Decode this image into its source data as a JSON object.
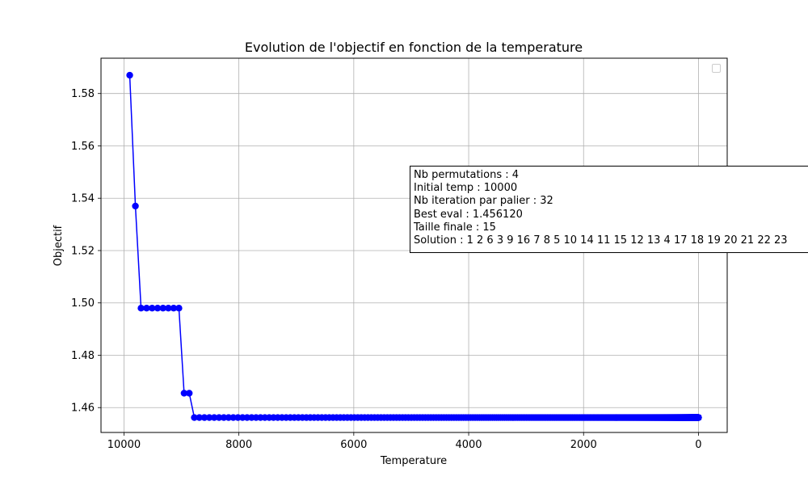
{
  "chart_data": {
    "type": "line",
    "title": "Evolution de l'objectif en fonction de la temperature",
    "xlabel": "Temperature",
    "ylabel": "Objectif",
    "xlim": [
      10400,
      -500
    ],
    "ylim": [
      1.4505,
      1.5935
    ],
    "x_inverted": true,
    "xticks": [
      10000,
      8000,
      6000,
      4000,
      2000,
      0
    ],
    "xtick_labels": [
      "10000",
      "8000",
      "6000",
      "4000",
      "2000",
      "0"
    ],
    "yticks": [
      1.46,
      1.48,
      1.5,
      1.52,
      1.54,
      1.56,
      1.58
    ],
    "ytick_labels": [
      "1.46",
      "1.48",
      "1.50",
      "1.52",
      "1.54",
      "1.56",
      "1.58"
    ],
    "grid": true,
    "legend": "top-right, empty",
    "series": [
      {
        "color": "#0000ff",
        "marker": "circle",
        "description": "Temperature geometric cooling 10000 * 0.99^k, 900 steps",
        "cooling": {
          "start": 10000,
          "ratio": 0.99,
          "count": 900
        },
        "x_first": [
          9900,
          9801,
          9703,
          9606,
          9510,
          9415,
          9321,
          9227,
          9135,
          9044,
          8953,
          8864,
          8775,
          8687
        ],
        "y_first": [
          1.587,
          1.537,
          1.498,
          1.498,
          1.498,
          1.498,
          1.498,
          1.498,
          1.498,
          1.498,
          1.4655,
          1.4655,
          1.4562,
          1.4562
        ],
        "y_rest": 1.4562
      }
    ],
    "annotation": [
      "Nb permutations : 4",
      "Initial temp : 10000",
      "Nb iteration par palier : 32",
      "Best eval : 1.456120",
      "Taille finale : 15",
      "Solution : 1 2 6 3 9 16 7 8 5 10 14 11 15 12 13 4 17 18 19 20 21 22 23"
    ]
  }
}
